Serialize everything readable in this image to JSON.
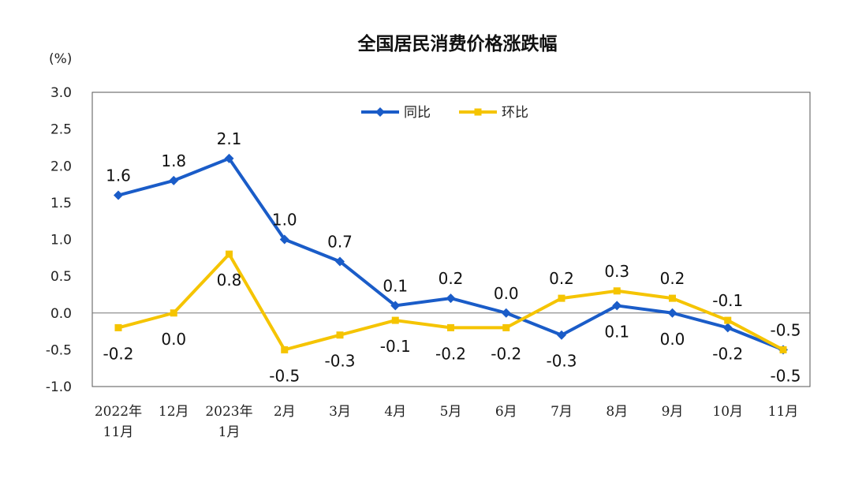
{
  "chart_data": {
    "type": "line",
    "title": "全国居民消费价格涨跌幅",
    "ylabel": "(%)",
    "xlabel": "",
    "ylim": [
      -1.0,
      3.0
    ],
    "yticks": [
      "3.0",
      "2.5",
      "2.0",
      "1.5",
      "1.0",
      "0.5",
      "0.0",
      "-0.5",
      "-1.0"
    ],
    "categories": [
      [
        "2022年",
        "11月"
      ],
      [
        "12月"
      ],
      [
        "2023年",
        "1月"
      ],
      [
        "2月"
      ],
      [
        "3月"
      ],
      [
        "4月"
      ],
      [
        "5月"
      ],
      [
        "6月"
      ],
      [
        "7月"
      ],
      [
        "8月"
      ],
      [
        "9月"
      ],
      [
        "10月"
      ],
      [
        "11月"
      ]
    ],
    "series": [
      {
        "name": "同比",
        "color": "#1a5cc8",
        "marker": "diamond",
        "values": [
          1.6,
          1.8,
          2.1,
          1.0,
          0.7,
          0.1,
          0.2,
          0.0,
          -0.3,
          0.1,
          0.0,
          -0.2,
          -0.5
        ],
        "labels": [
          "1.6",
          "1.8",
          "2.1",
          "1.0",
          "0.7",
          "0.1",
          "0.2",
          "0.0",
          "-0.3",
          "0.1",
          "0.0",
          "-0.2",
          "-0.5"
        ]
      },
      {
        "name": "环比",
        "color": "#f5c400",
        "marker": "square",
        "values": [
          -0.2,
          0.0,
          0.8,
          -0.5,
          -0.3,
          -0.1,
          -0.2,
          -0.2,
          0.2,
          0.3,
          0.2,
          -0.1,
          -0.5
        ],
        "labels": [
          "-0.2",
          "0.0",
          "0.8",
          "-0.5",
          "-0.3",
          "-0.1",
          "-0.2",
          "-0.2",
          "0.2",
          "0.3",
          "0.2",
          "-0.1",
          "-0.5"
        ]
      }
    ],
    "grid": false,
    "legend": "top-center"
  }
}
